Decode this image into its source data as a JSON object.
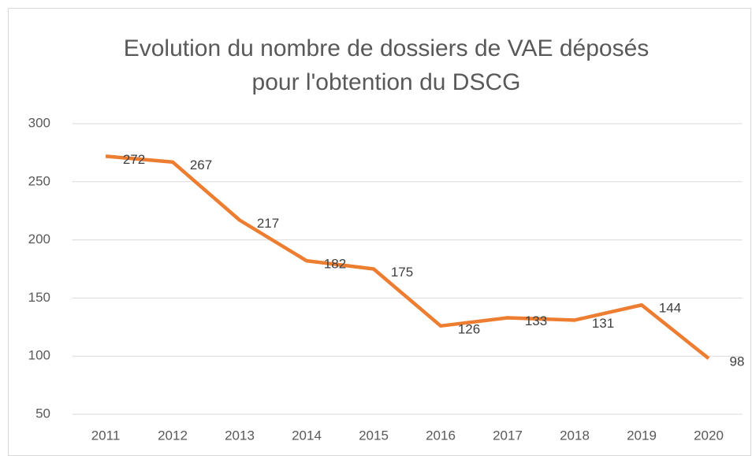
{
  "chart_data": {
    "type": "line",
    "title": [
      "Evolution du nombre de dossiers de VAE déposés",
      "pour l'obtention du DSCG"
    ],
    "categories": [
      "2011",
      "2012",
      "2013",
      "2014",
      "2015",
      "2016",
      "2017",
      "2018",
      "2019",
      "2020"
    ],
    "values": [
      272,
      267,
      217,
      182,
      175,
      126,
      133,
      131,
      144,
      98
    ],
    "color": "#ed7d31",
    "ylim": [
      50,
      300
    ],
    "yticks": [
      50,
      100,
      150,
      200,
      250,
      300
    ],
    "grid": true
  }
}
